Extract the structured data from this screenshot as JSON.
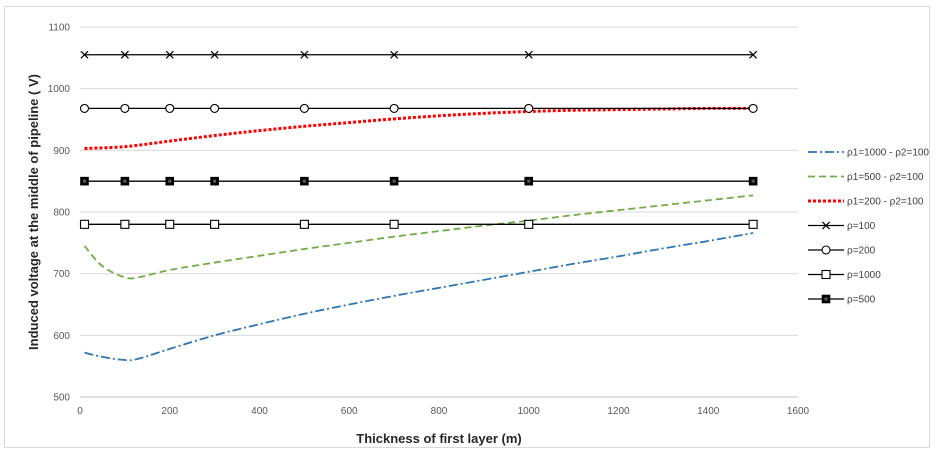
{
  "chart_data": {
    "type": "line",
    "xlabel": "Thickness of first layer (m)",
    "ylabel": "Induced voltage at the middle of pipeline ( V)",
    "xlim": [
      0,
      1600
    ],
    "ylim": [
      500,
      1100
    ],
    "x_ticks": [
      0,
      200,
      400,
      600,
      800,
      1000,
      1200,
      1400,
      1600
    ],
    "y_ticks": [
      500,
      600,
      700,
      800,
      900,
      1000,
      1100
    ],
    "grid": "horizontal",
    "legend_position": "right",
    "series": [
      {
        "name": "ρ1=1000 - ρ2=100",
        "color": "#2e75b6",
        "style": "dash-dot",
        "marker": "none",
        "x": [
          10,
          50,
          100,
          130,
          200,
          300,
          400,
          500,
          600,
          700,
          800,
          900,
          1000,
          1100,
          1200,
          1300,
          1400,
          1500
        ],
        "y": [
          572,
          565,
          560,
          562,
          578,
          600,
          618,
          635,
          650,
          664,
          677,
          690,
          703,
          716,
          728,
          741,
          753,
          766
        ]
      },
      {
        "name": "ρ1=500 - ρ2=100",
        "color": "#70ad47",
        "style": "dashed",
        "marker": "none",
        "x": [
          10,
          50,
          100,
          130,
          200,
          300,
          400,
          500,
          600,
          700,
          800,
          900,
          1000,
          1100,
          1200,
          1300,
          1400,
          1500
        ],
        "y": [
          745,
          712,
          694,
          694,
          706,
          718,
          729,
          740,
          750,
          760,
          769,
          778,
          786,
          795,
          803,
          811,
          819,
          827
        ]
      },
      {
        "name": "ρ1=200 - ρ2=100",
        "color": "#ff0000",
        "style": "dotted",
        "marker": "none",
        "x": [
          10,
          100,
          200,
          300,
          400,
          500,
          600,
          700,
          800,
          900,
          1000,
          1100,
          1200,
          1300,
          1400,
          1500
        ],
        "y": [
          903,
          906,
          915,
          924,
          932,
          939,
          945,
          951,
          956,
          960,
          963,
          965,
          966,
          967,
          968,
          968
        ]
      },
      {
        "name": "ρ=100",
        "color": "#000000",
        "style": "solid",
        "marker": "x",
        "x": [
          10,
          100,
          200,
          300,
          500,
          700,
          1000,
          1500
        ],
        "y": [
          1055,
          1055,
          1055,
          1055,
          1055,
          1055,
          1055,
          1055
        ]
      },
      {
        "name": "ρ=200",
        "color": "#000000",
        "style": "solid",
        "marker": "circle",
        "x": [
          10,
          100,
          200,
          300,
          500,
          700,
          1000,
          1500
        ],
        "y": [
          968,
          968,
          968,
          968,
          968,
          968,
          968,
          968
        ]
      },
      {
        "name": "ρ=1000",
        "color": "#000000",
        "style": "solid",
        "marker": "square",
        "x": [
          10,
          100,
          200,
          300,
          500,
          700,
          1000,
          1500
        ],
        "y": [
          780,
          780,
          780,
          780,
          780,
          780,
          780,
          780
        ]
      },
      {
        "name": "ρ=500",
        "color": "#000000",
        "style": "solid",
        "marker": "filled-square",
        "x": [
          10,
          100,
          200,
          300,
          500,
          700,
          1000,
          1500
        ],
        "y": [
          850,
          850,
          850,
          850,
          850,
          850,
          850,
          850
        ]
      }
    ]
  }
}
